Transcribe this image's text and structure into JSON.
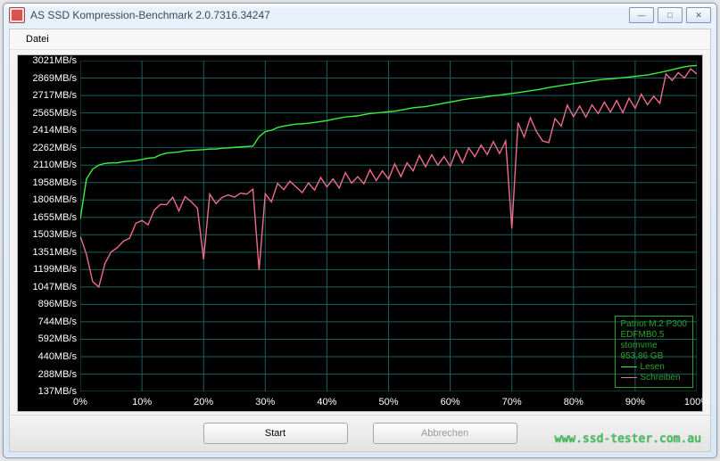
{
  "window": {
    "title": "AS SSD Kompression-Benchmark 2.0.7316.34247"
  },
  "menu": {
    "datei": "Datei"
  },
  "buttons": {
    "start": "Start",
    "abort": "Abbrechen"
  },
  "watermark": "www.ssd-tester.com.au",
  "legend": {
    "line1": "Patriot M.2 P300",
    "line2": "EDFMB0.5",
    "line3": "stornvme",
    "line4": "953,86 GB",
    "lesen": "Lesen",
    "schreiben": "Schreiben",
    "lesen_color": "#3bf23b",
    "schreiben_color": "#ef6b8b"
  },
  "chart": {
    "background": "#000000",
    "grid_color": "#186060",
    "xmin": 0,
    "xmax": 100,
    "ymin": 137,
    "ymax": 3021,
    "xtick_pos": [
      0,
      10,
      20,
      30,
      40,
      50,
      60,
      70,
      80,
      90,
      100
    ],
    "xtick_labels": [
      "0%",
      "10%",
      "20%",
      "30%",
      "40%",
      "50%",
      "60%",
      "70%",
      "80%",
      "90%",
      "100%"
    ],
    "ytick_values": [
      3021,
      2869,
      2717,
      2565,
      2414,
      2262,
      2110,
      1958,
      1806,
      1655,
      1503,
      1351,
      1199,
      1047,
      896,
      744,
      592,
      440,
      288,
      137
    ],
    "y_unit": "MB/s",
    "series": {
      "lesen": [
        1640,
        1990,
        2075,
        2110,
        2125,
        2130,
        2130,
        2140,
        2145,
        2150,
        2160,
        2170,
        2175,
        2200,
        2215,
        2220,
        2225,
        2235,
        2238,
        2242,
        2245,
        2250,
        2250,
        2258,
        2260,
        2265,
        2268,
        2272,
        2276,
        2358,
        2402,
        2414,
        2438,
        2450,
        2460,
        2468,
        2470,
        2475,
        2482,
        2490,
        2498,
        2510,
        2520,
        2530,
        2535,
        2540,
        2550,
        2560,
        2565,
        2570,
        2575,
        2580,
        2590,
        2600,
        2610,
        2615,
        2620,
        2630,
        2640,
        2650,
        2660,
        2670,
        2680,
        2688,
        2695,
        2700,
        2708,
        2715,
        2720,
        2728,
        2735,
        2742,
        2750,
        2758,
        2766,
        2776,
        2786,
        2795,
        2804,
        2812,
        2820,
        2828,
        2836,
        2844,
        2852,
        2858,
        2862,
        2867,
        2872,
        2878,
        2884,
        2890,
        2896,
        2907,
        2918,
        2929,
        2942,
        2955,
        2967,
        2975,
        2979
      ],
      "schreiben": [
        1490,
        1332,
        1095,
        1048,
        1253,
        1353,
        1391,
        1447,
        1473,
        1603,
        1627,
        1590,
        1718,
        1768,
        1765,
        1830,
        1711,
        1835,
        1790,
        1735,
        1288,
        1857,
        1774,
        1829,
        1850,
        1831,
        1866,
        1858,
        1901,
        1196,
        1860,
        1790,
        1951,
        1896,
        1970,
        1920,
        1870,
        1954,
        1893,
        2002,
        1920,
        1990,
        1910,
        2045,
        1953,
        2009,
        1948,
        2069,
        1976,
        2060,
        1987,
        2120,
        2010,
        2130,
        2060,
        2195,
        2095,
        2200,
        2110,
        2185,
        2100,
        2240,
        2130,
        2260,
        2183,
        2285,
        2203,
        2316,
        2211,
        2320,
        1558,
        2480,
        2355,
        2524,
        2402,
        2320,
        2307,
        2516,
        2450,
        2633,
        2532,
        2625,
        2529,
        2635,
        2559,
        2659,
        2572,
        2674,
        2567,
        2693,
        2606,
        2728,
        2636,
        2711,
        2649,
        2906,
        2849,
        2916,
        2870,
        2950,
        2904
      ]
    }
  }
}
